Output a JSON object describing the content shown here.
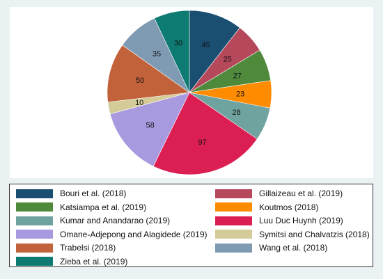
{
  "chart_data": {
    "type": "pie",
    "title": "",
    "slices": [
      {
        "name": "Bouri et al. (2018)",
        "value": 45,
        "color": "#1b4f72"
      },
      {
        "name": "Gillaizeau et al. (2019)",
        "value": 25,
        "color": "#b5485a"
      },
      {
        "name": "Katsiampa et al. (2019)",
        "value": 27,
        "color": "#4f8a3c"
      },
      {
        "name": "Koutmos (2018)",
        "value": 23,
        "color": "#ff8c00"
      },
      {
        "name": "Kumar and Anandarao (2019)",
        "value": 28,
        "color": "#6fa3a0"
      },
      {
        "name": "Luu Duc Huynh (2019)",
        "value": 97,
        "color": "#dc1f53"
      },
      {
        "name": "Omane-Adjepong and Alagidede (2019)",
        "value": 58,
        "color": "#a99ae0"
      },
      {
        "name": "Symitsi and Chalvatzis (2018)",
        "value": 10,
        "color": "#d4cb98"
      },
      {
        "name": "Trabelsi (2018)",
        "value": 50,
        "color": "#c2623a"
      },
      {
        "name": "Wang et al. (2018)",
        "value": 35,
        "color": "#7f9bb3"
      },
      {
        "name": "Zieba et al. (2019)",
        "value": 30,
        "color": "#0e7b72"
      }
    ],
    "start_angle": "12 o'clock",
    "direction": "clockwise",
    "legend_placement": "bottom"
  }
}
